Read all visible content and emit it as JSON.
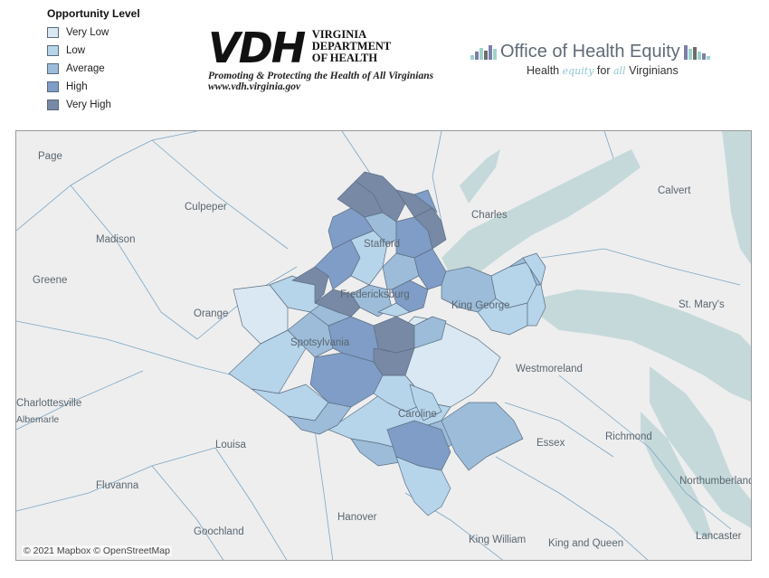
{
  "legend": {
    "title": "Opportunity Level",
    "items": [
      {
        "label": "Very Low",
        "color": "#d9e8f2"
      },
      {
        "label": "Low",
        "color": "#b6d4ea"
      },
      {
        "label": "Average",
        "color": "#9cbcd9"
      },
      {
        "label": "High",
        "color": "#7f9dc6"
      },
      {
        "label": "Very High",
        "color": "#7789a5"
      }
    ]
  },
  "vdh": {
    "logo": "VDH",
    "dept_line1": "VIRGINIA",
    "dept_line2": "DEPARTMENT",
    "dept_line3": "OF HEALTH",
    "tagline": "Promoting & Protecting the Health of All Virginians",
    "url": "www.vdh.virginia.gov"
  },
  "ohe": {
    "title": "Office of Health Equity",
    "tag_pre": "Health",
    "tag_script1": "equity",
    "tag_mid": "for",
    "tag_script2": "all",
    "tag_post": "Virginians"
  },
  "map": {
    "places": [
      {
        "name": "Page"
      },
      {
        "name": "Culpeper"
      },
      {
        "name": "Madison"
      },
      {
        "name": "Greene"
      },
      {
        "name": "Orange"
      },
      {
        "name": "Charlottesville"
      },
      {
        "name": "Albemarle"
      },
      {
        "name": "Louisa"
      },
      {
        "name": "Fluvanna"
      },
      {
        "name": "Goochland"
      },
      {
        "name": "Hanover"
      },
      {
        "name": "King William"
      },
      {
        "name": "King and Queen"
      },
      {
        "name": "Essex"
      },
      {
        "name": "Richmond"
      },
      {
        "name": "Northumberland"
      },
      {
        "name": "Lancaster"
      },
      {
        "name": "Westmoreland"
      },
      {
        "name": "St. Mary's"
      },
      {
        "name": "Calvert"
      },
      {
        "name": "Charles"
      },
      {
        "name": "Stafford"
      },
      {
        "name": "Fredericksburg"
      },
      {
        "name": "King George"
      },
      {
        "name": "Spotsylvania"
      },
      {
        "name": "Caroline"
      }
    ],
    "attribution": "© 2021 Mapbox © OpenStreetMap",
    "water_color": "#c5d9da",
    "land_color": "#eeeeef"
  }
}
